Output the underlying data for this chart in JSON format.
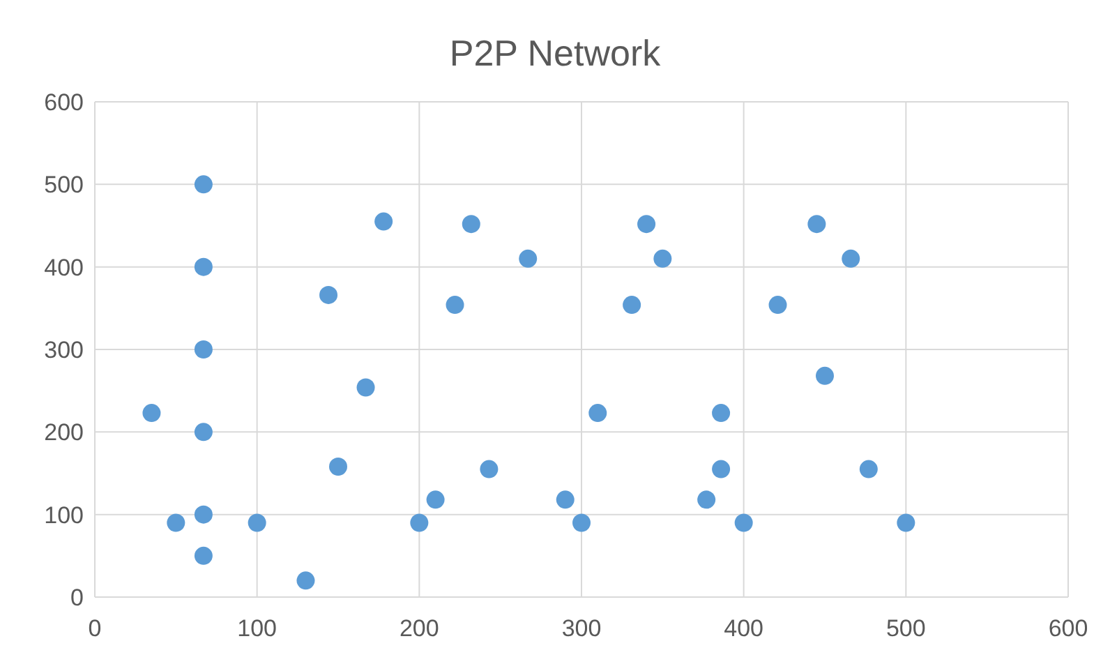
{
  "chart_data": {
    "type": "scatter",
    "title": "P2P Network",
    "x": [
      67,
      67,
      67,
      67,
      67,
      67,
      35,
      50,
      100,
      130,
      144,
      150,
      167,
      178,
      200,
      210,
      222,
      232,
      243,
      267,
      290,
      300,
      310,
      331,
      340,
      350,
      377,
      386,
      386,
      400,
      421,
      445,
      450,
      466,
      477,
      500
    ],
    "values": [
      500,
      400,
      300,
      200,
      100,
      50,
      223,
      90,
      90,
      20,
      366,
      158,
      254,
      455,
      90,
      118,
      354,
      452,
      155,
      410,
      118,
      90,
      223,
      354,
      452,
      410,
      118,
      223,
      155,
      90,
      354,
      452,
      268,
      410,
      155,
      90
    ],
    "color": "#5b9bd5",
    "marker": "circle",
    "xlim": [
      0,
      600
    ],
    "xticks": [
      0,
      100,
      200,
      300,
      400,
      500,
      600
    ],
    "ylim": [
      0,
      600
    ],
    "yticks": [
      0,
      100,
      200,
      300,
      400,
      500,
      600
    ],
    "grid": true
  }
}
